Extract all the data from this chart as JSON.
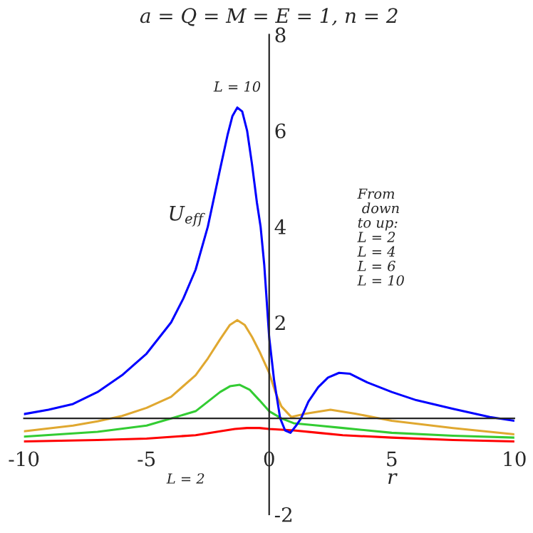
{
  "chart_data": {
    "type": "line",
    "title": "a = Q = M = E = 1, n = 2",
    "xlabel": "r",
    "ylabel": "U$_{eff}$",
    "x": [
      -10,
      -9,
      -8,
      -7,
      -6,
      -5,
      -4,
      -3.5,
      -3,
      -2.5,
      -2,
      -1.7,
      -1.5,
      -1.3,
      -1.1,
      -0.9,
      -0.7,
      -0.5,
      -0.35,
      -0.2,
      0,
      0.2,
      0.45,
      0.65,
      0.87,
      1.1,
      1.3,
      1.6,
      2,
      2.4,
      2.85,
      3.3,
      4,
      5,
      6,
      7.5,
      9,
      10
    ],
    "series": [
      {
        "color": "#ff0000",
        "x": [
          -10,
          -7,
          -5,
          -3,
          -2,
          -1.4,
          -0.9,
          -0.4,
          0,
          1,
          2,
          3,
          5,
          7.5,
          10
        ],
        "values": [
          -0.48,
          -0.45,
          -0.42,
          -0.35,
          -0.27,
          -0.22,
          -0.2,
          -0.2,
          -0.22,
          -0.25,
          -0.3,
          -0.35,
          -0.4,
          -0.45,
          -0.48
        ]
      },
      {
        "color": "#33cc33",
        "x": [
          -10,
          -7,
          -5,
          -4,
          -3,
          -2.5,
          -2,
          -1.6,
          -1.2,
          -0.8,
          -0.4,
          0,
          0.5,
          1,
          2,
          3,
          5,
          7.5,
          10
        ],
        "values": [
          -0.38,
          -0.28,
          -0.15,
          0,
          0.15,
          0.35,
          0.55,
          0.67,
          0.7,
          0.6,
          0.38,
          0.15,
          0,
          -0.1,
          -0.15,
          -0.2,
          -0.3,
          -0.36,
          -0.4
        ]
      },
      {
        "color": "#e0a830",
        "x": [
          -10,
          -8,
          -7,
          -6,
          -5,
          -4,
          -3,
          -2.5,
          -2,
          -1.6,
          -1.3,
          -1,
          -0.7,
          -0.4,
          0,
          0.25,
          0.5,
          0.9,
          1.5,
          2.5,
          3.5,
          5,
          7.5,
          10
        ],
        "values": [
          -0.27,
          -0.15,
          -0.06,
          0.05,
          0.22,
          0.45,
          0.9,
          1.25,
          1.65,
          1.95,
          2.05,
          1.95,
          1.7,
          1.4,
          0.95,
          0.55,
          0.25,
          0.03,
          0.1,
          0.18,
          0.1,
          -0.05,
          -0.2,
          -0.33
        ]
      },
      {
        "color": "#0000ff",
        "values": [
          0.09,
          0.18,
          0.3,
          0.55,
          0.9,
          1.35,
          2.0,
          2.5,
          3.1,
          4.0,
          5.2,
          5.9,
          6.3,
          6.48,
          6.4,
          6.0,
          5.3,
          4.5,
          4.0,
          3.2,
          1.7,
          0.8,
          0,
          -0.25,
          -0.3,
          -0.15,
          0,
          0.35,
          0.65,
          0.85,
          0.95,
          0.93,
          0.75,
          0.55,
          0.38,
          0.2,
          0.03,
          -0.05
        ]
      }
    ],
    "xlim": [
      -10,
      10
    ],
    "ylim": [
      -2,
      8
    ],
    "xticks": [
      -10,
      -5,
      0,
      5,
      10
    ],
    "yticks": [
      -2,
      2,
      4,
      6,
      8
    ],
    "annotations": [
      {
        "text": "L = 10",
        "x": -1.3,
        "y": 6.48
      },
      {
        "text": "L = 2",
        "x": -3.4,
        "y": -0.37
      },
      "From\n down\nto up:\nL = 2\nL = 4\nL = 6\nL = 10"
    ],
    "grid": false,
    "legend": false
  }
}
